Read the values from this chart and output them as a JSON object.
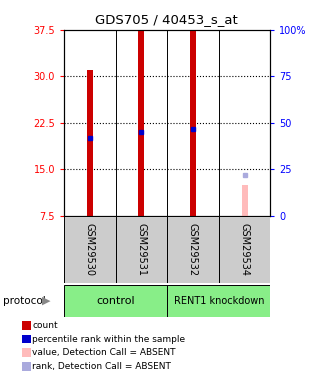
{
  "title": "GDS705 / 40453_s_at",
  "samples": [
    "GSM29530",
    "GSM29531",
    "GSM29532",
    "GSM29534"
  ],
  "ylim_left": [
    7.5,
    37.5
  ],
  "ylim_right": [
    0,
    100
  ],
  "yticks_left": [
    7.5,
    15.0,
    22.5,
    30.0,
    37.5
  ],
  "yticks_right": [
    0,
    25,
    50,
    75,
    100
  ],
  "yticklabels_right": [
    "0",
    "25",
    "50",
    "75",
    "100%"
  ],
  "bar_values": [
    31.0,
    37.5,
    37.5,
    12.5
  ],
  "bar_colors": [
    "#cc0000",
    "#cc0000",
    "#cc0000",
    "#ffbbbb"
  ],
  "rank_values": [
    20.0,
    21.0,
    21.5,
    14.0
  ],
  "rank_colors": [
    "#0000cc",
    "#0000cc",
    "#0000cc",
    "#aaaadd"
  ],
  "group_labels": [
    "control",
    "RENT1 knockdown"
  ],
  "group_color": "#88ee88",
  "sample_area_color": "#cccccc",
  "bar_width": 0.12,
  "legend_items": [
    {
      "color": "#cc0000",
      "label": "count"
    },
    {
      "color": "#0000cc",
      "label": "percentile rank within the sample"
    },
    {
      "color": "#ffbbbb",
      "label": "value, Detection Call = ABSENT"
    },
    {
      "color": "#aaaadd",
      "label": "rank, Detection Call = ABSENT"
    }
  ],
  "protocol_label": "protocol"
}
